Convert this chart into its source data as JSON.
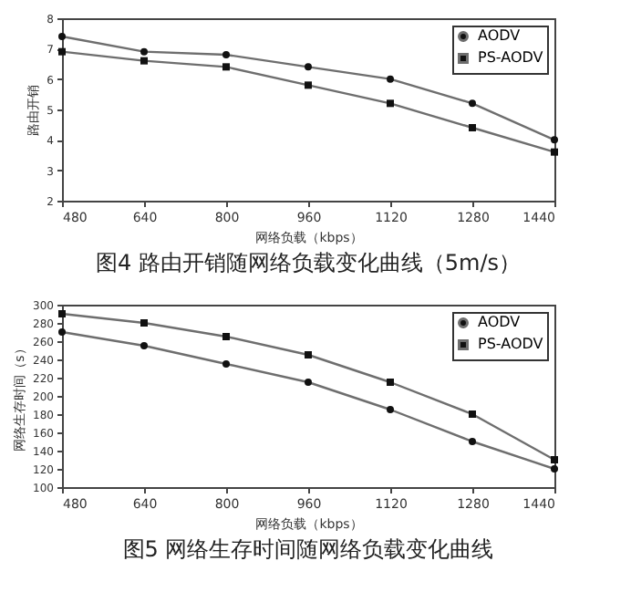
{
  "chart_data": [
    {
      "type": "line",
      "title": "图4 路由开销随网络负载变化曲线（5m/s）",
      "xlabel": "网络负载（kbps）",
      "ylabel": "路由开销",
      "x": [
        480,
        640,
        800,
        960,
        1120,
        1280,
        1440
      ],
      "xlim": [
        480,
        1440
      ],
      "xticks": [
        480,
        640,
        800,
        960,
        1120,
        1280,
        1440
      ],
      "ylim": [
        2,
        8
      ],
      "yticks": [
        2,
        3,
        4,
        5,
        6,
        7,
        8
      ],
      "legend": "top right",
      "line_style": "solid",
      "series": [
        {
          "name": "AODV",
          "color": "#6e6e6e",
          "marker": "circle",
          "values": [
            7.4,
            6.9,
            6.8,
            6.4,
            6.0,
            5.2,
            4.0
          ]
        },
        {
          "name": "PS-AODV",
          "color": "#6e6e6e",
          "marker": "square",
          "values": [
            6.9,
            6.6,
            6.4,
            5.8,
            5.2,
            4.4,
            3.6
          ]
        }
      ]
    },
    {
      "type": "line",
      "title": "图5 网络生存时间随网络负载变化曲线",
      "xlabel": "网络负载（kbps）",
      "ylabel": "网络生存时间（s）",
      "x": [
        480,
        640,
        800,
        960,
        1120,
        1280,
        1440
      ],
      "xlim": [
        480,
        1440
      ],
      "xticks": [
        480,
        640,
        800,
        960,
        1120,
        1280,
        1440
      ],
      "ylim": [
        100,
        300
      ],
      "yticks": [
        100,
        120,
        140,
        160,
        180,
        200,
        220,
        240,
        260,
        280,
        300
      ],
      "legend": "top right",
      "line_style": "solid",
      "series": [
        {
          "name": "AODV",
          "color": "#6e6e6e",
          "marker": "circle",
          "values": [
            270,
            255,
            235,
            215,
            185,
            150,
            120
          ]
        },
        {
          "name": "PS-AODV",
          "color": "#6e6e6e",
          "marker": "square",
          "values": [
            290,
            280,
            265,
            245,
            215,
            180,
            130
          ]
        }
      ]
    }
  ]
}
